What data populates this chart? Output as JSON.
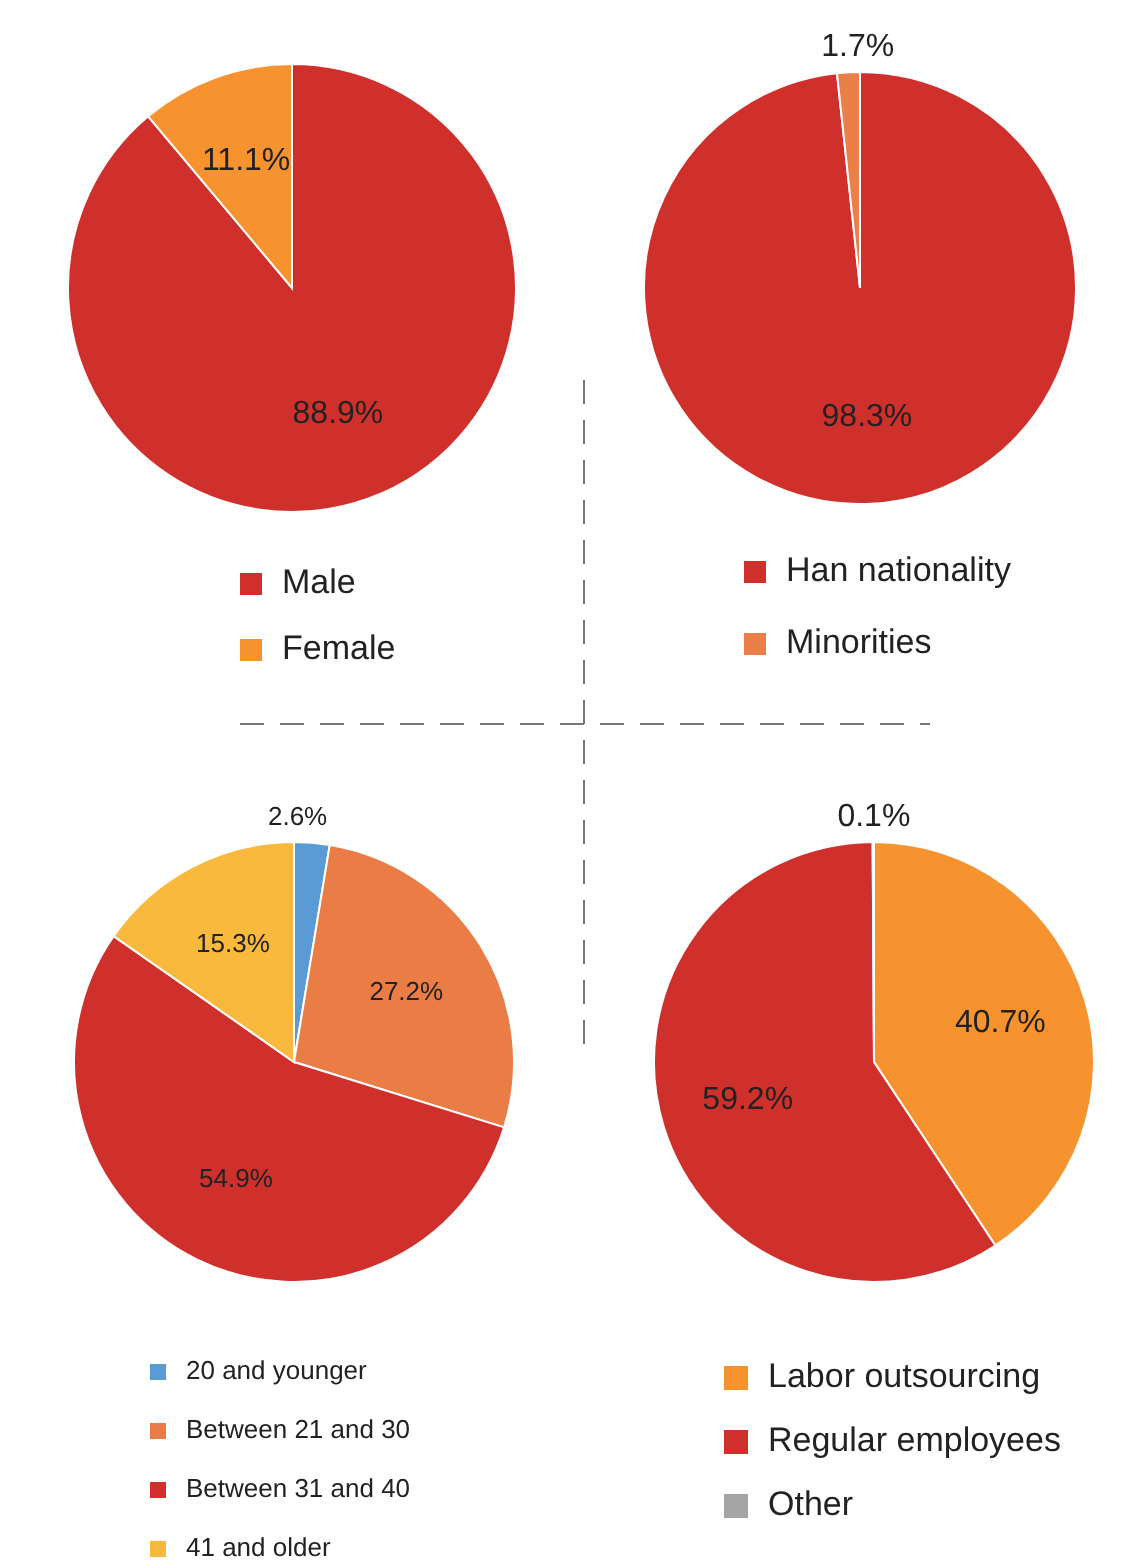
{
  "chart_data": [
    {
      "type": "pie",
      "categories": [
        "Male",
        "Female"
      ],
      "values": [
        88.9,
        11.1
      ],
      "colors": [
        "#d0302b",
        "#f7932f"
      ],
      "value_labels": [
        "88.9%",
        "11.1%"
      ],
      "legend": "bottom"
    },
    {
      "type": "pie",
      "categories": [
        "Han nationality",
        "Minorities"
      ],
      "values": [
        98.3,
        1.7
      ],
      "colors": [
        "#d0302b",
        "#eb7f48"
      ],
      "value_labels": [
        "98.3%",
        "1.7%"
      ],
      "legend": "bottom"
    },
    {
      "type": "pie",
      "categories": [
        "20 and younger",
        "Between 21 and 30",
        "Between 31 and 40",
        "41 and older"
      ],
      "values": [
        2.6,
        27.2,
        54.9,
        15.3
      ],
      "colors": [
        "#5b9bd5",
        "#ea7c45",
        "#d0302b",
        "#f9b93c"
      ],
      "value_labels": [
        "2.6%",
        "27.2%",
        "54.9%",
        "15.3%"
      ],
      "legend": "bottom"
    },
    {
      "type": "pie",
      "categories": [
        "Labor outsourcing",
        "Regular employees",
        "Other"
      ],
      "values": [
        40.7,
        59.2,
        0.1
      ],
      "colors": [
        "#f7932f",
        "#d0302b",
        "#a5a5a5"
      ],
      "value_labels": [
        "40.7%",
        "59.2%",
        "0.1%"
      ],
      "legend": "bottom"
    }
  ]
}
